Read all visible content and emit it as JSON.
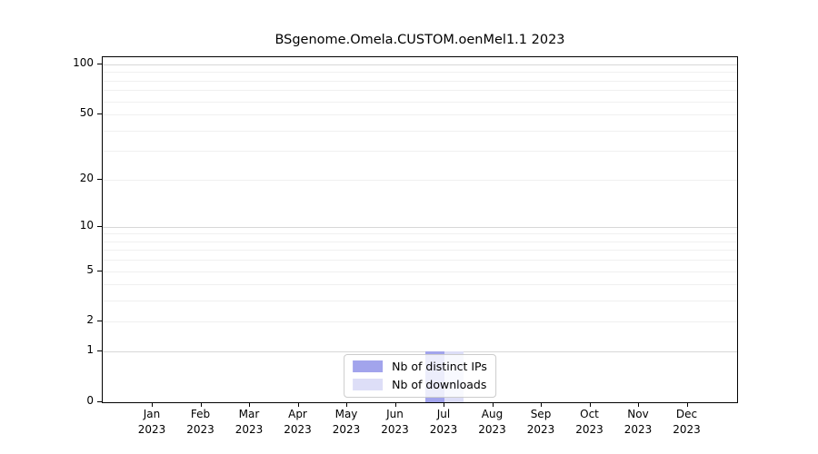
{
  "chart_data": {
    "type": "bar",
    "title": "BSgenome.Omela.CUSTOM.oenMel1.1 2023",
    "categories": [
      "Jan 2023",
      "Feb 2023",
      "Mar 2023",
      "Apr 2023",
      "May 2023",
      "Jun 2023",
      "Jul 2023",
      "Aug 2023",
      "Sep 2023",
      "Oct 2023",
      "Nov 2023",
      "Dec 2023"
    ],
    "series": [
      {
        "name": "Nb of distinct IPs",
        "color": "#a2a4ec",
        "values": [
          0,
          0,
          0,
          0,
          0,
          0,
          1,
          0,
          0,
          0,
          0,
          0
        ]
      },
      {
        "name": "Nb of downloads",
        "color": "#dddef7",
        "values": [
          0,
          0,
          0,
          0,
          0,
          0,
          1,
          0,
          0,
          0,
          0,
          0
        ]
      }
    ],
    "xlabel": "",
    "ylabel": "",
    "yscale": "log1p",
    "ylim": [
      0,
      100
    ],
    "yticks": [
      0,
      1,
      2,
      5,
      10,
      20,
      50,
      100
    ],
    "grid": {
      "major": [
        1,
        10,
        100
      ],
      "minor": [
        2,
        3,
        4,
        5,
        6,
        7,
        8,
        9,
        20,
        30,
        40,
        50,
        60,
        70,
        80,
        90
      ]
    },
    "legend_position": "bottom-center",
    "colors": {
      "axis": "#000000",
      "major_grid": "#d7d7d7",
      "minor_grid": "#f0f0f0",
      "background": "#ffffff"
    }
  }
}
